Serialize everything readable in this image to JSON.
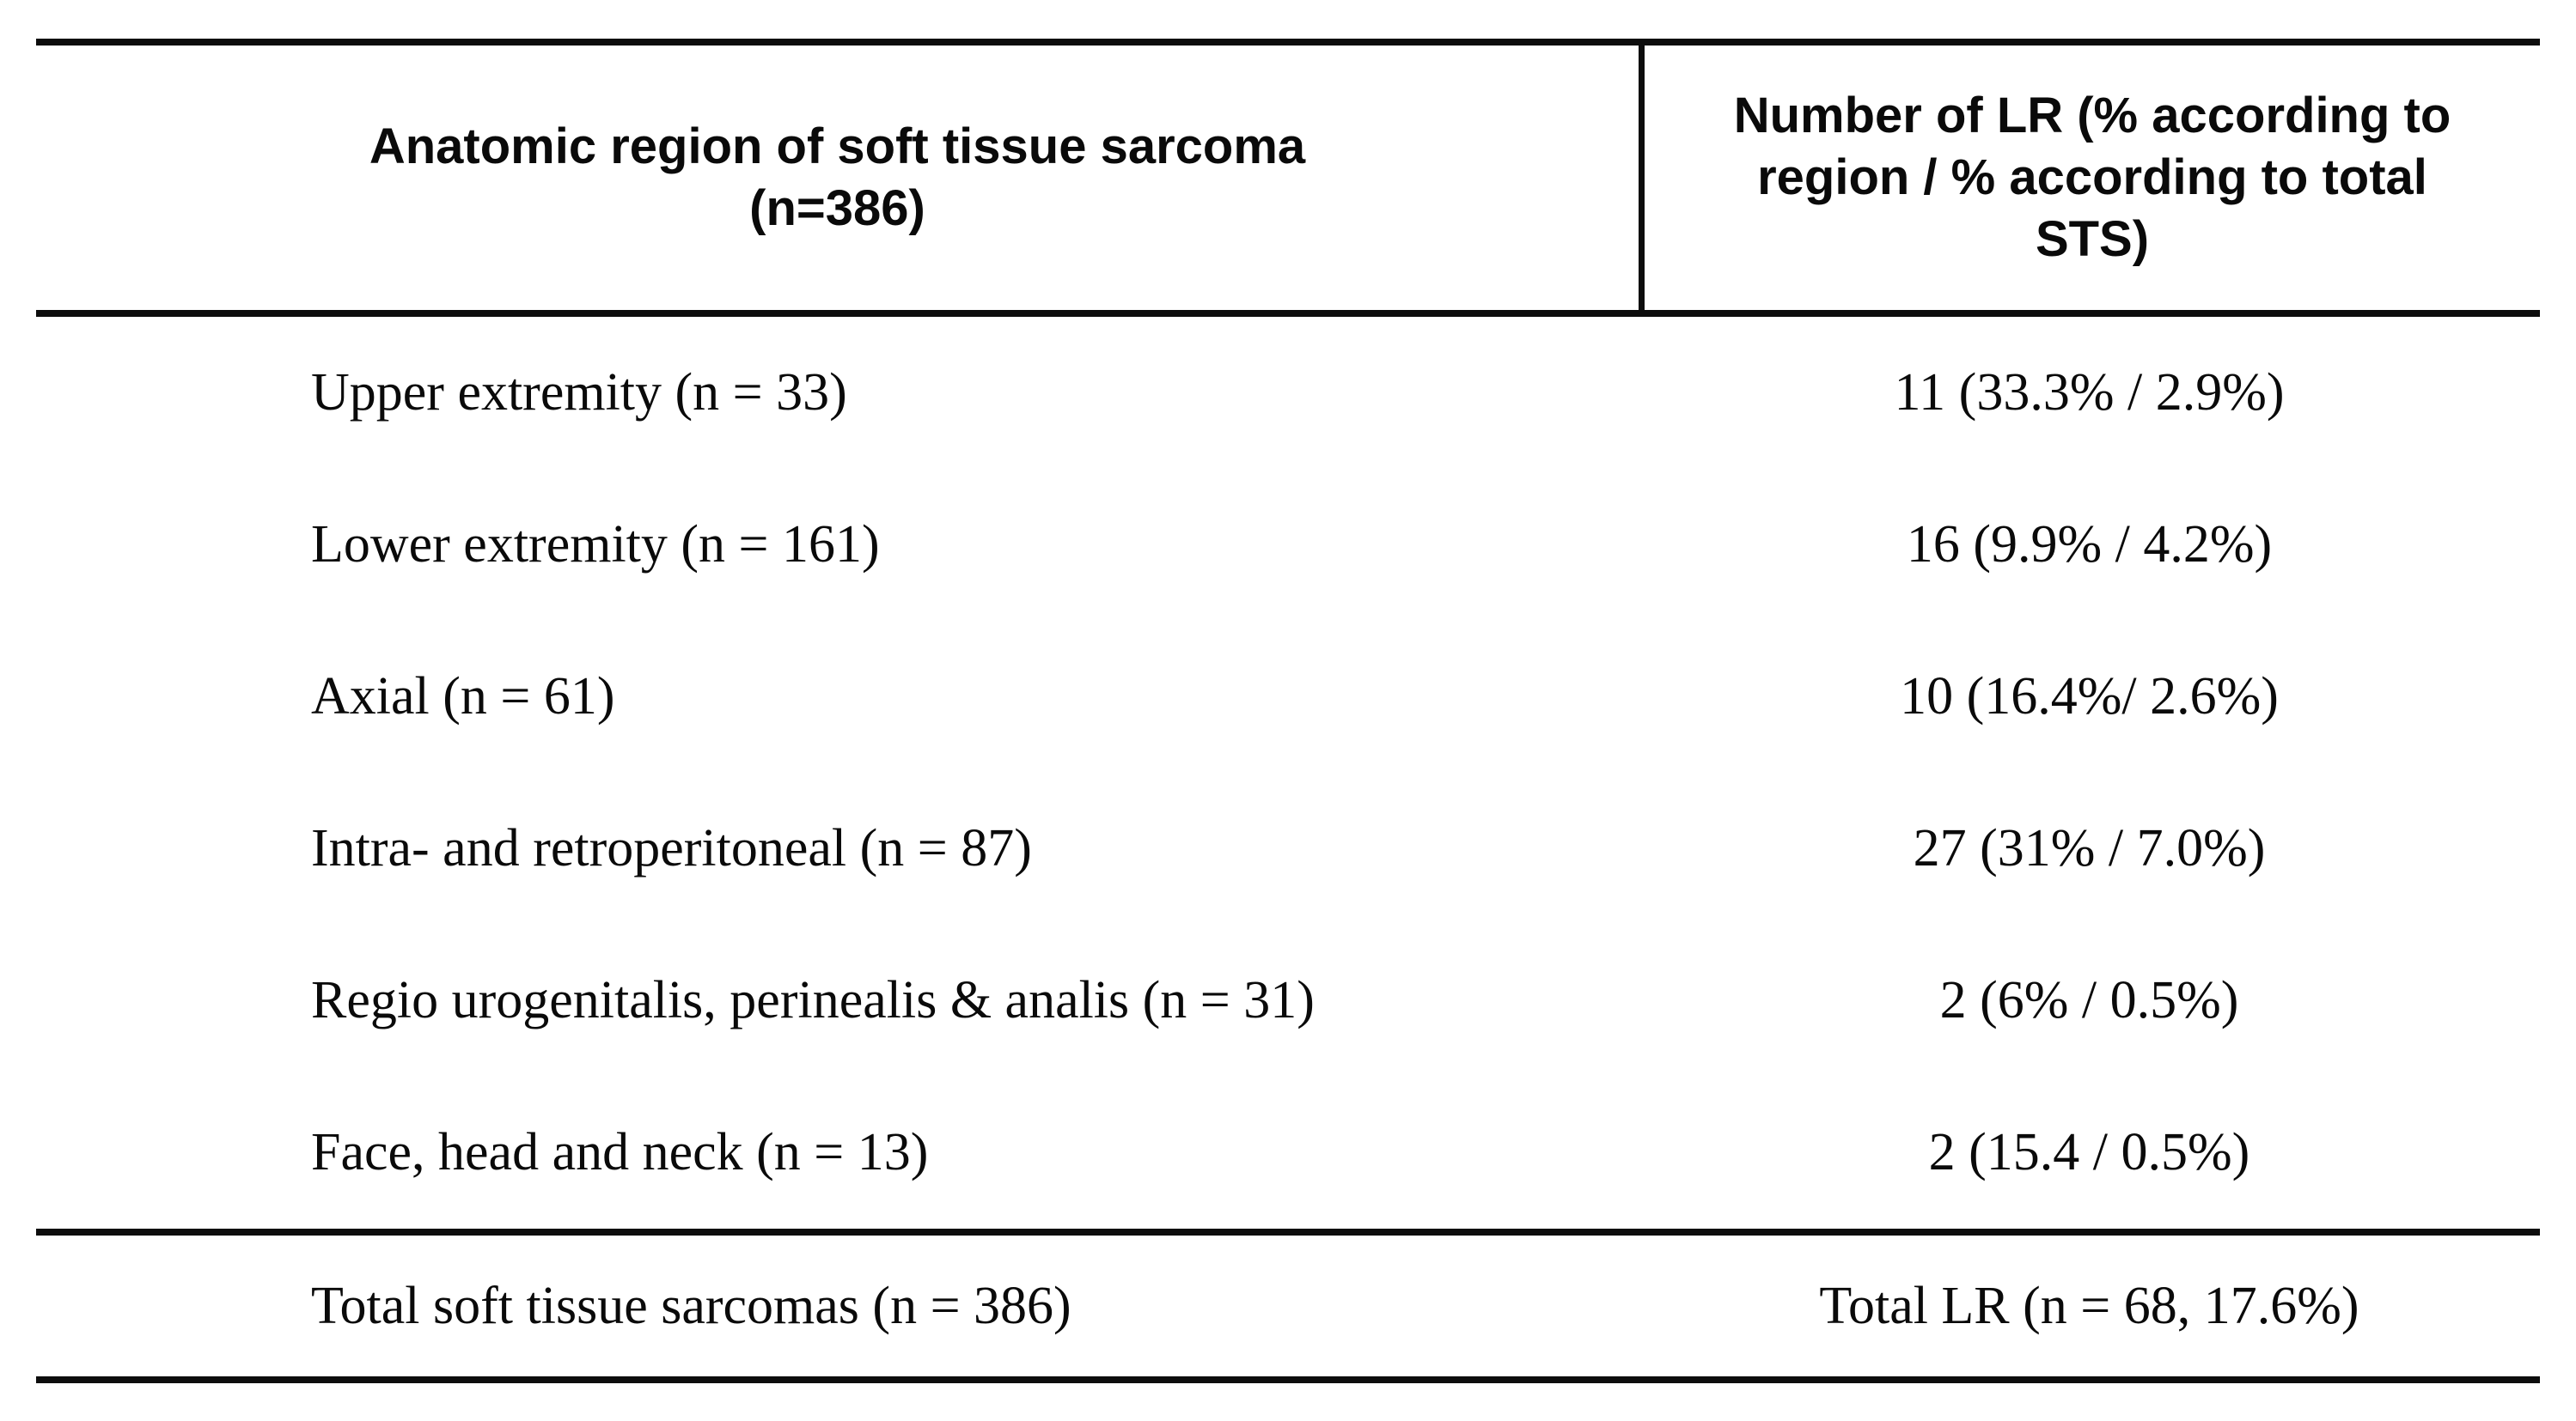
{
  "colors": {
    "background": "#ffffff",
    "text": "#0a0a0a",
    "rule": "#0d0d0d"
  },
  "table": {
    "header": {
      "col1_lines": [
        "Anatomic region of soft tissue sarcoma",
        "(n=386)"
      ],
      "col2_lines": [
        "Number of LR (% according to",
        "region / % according to total",
        "STS)"
      ]
    },
    "rows": [
      {
        "region": "Upper extremity (n = 33)",
        "lr": "11 (33.3% / 2.9%)"
      },
      {
        "region": "Lower extremity (n = 161)",
        "lr": "16 (9.9% / 4.2%)"
      },
      {
        "region": "Axial (n = 61)",
        "lr": "10 (16.4%/ 2.6%)"
      },
      {
        "region": "Intra- and retroperitoneal (n = 87)",
        "lr": "27 (31% / 7.0%)"
      },
      {
        "region": "Regio urogenitalis, perinealis & analis (n = 31)",
        "lr": "2 (6% / 0.5%)"
      },
      {
        "region": "Face, head and neck (n = 13)",
        "lr": "2 (15.4 / 0.5%)"
      }
    ],
    "total": {
      "region": "Total soft tissue sarcomas (n = 386)",
      "lr": "Total LR (n = 68, 17.6%)"
    }
  }
}
